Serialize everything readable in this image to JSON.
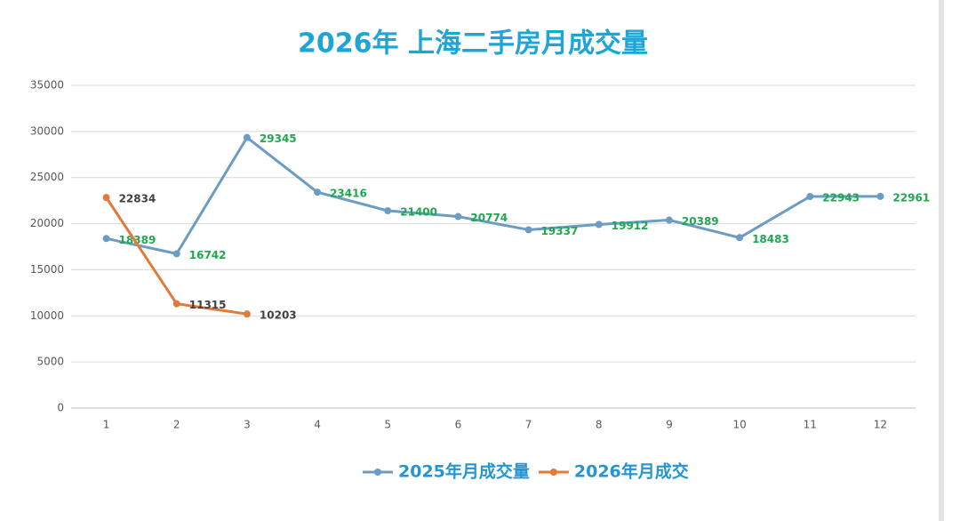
{
  "chart_data": {
    "type": "line",
    "title": "2026年 上海二手房月成交量",
    "categories": [
      "1",
      "2",
      "3",
      "4",
      "5",
      "6",
      "7",
      "8",
      "9",
      "10",
      "11",
      "12"
    ],
    "series": [
      {
        "name": "2025年月成交量",
        "color": "#6a9cc4",
        "label_color": "#1fa84f",
        "values": [
          18389,
          16742,
          29345,
          23416,
          21400,
          20774,
          19337,
          19912,
          20389,
          18483,
          22943,
          22961
        ]
      },
      {
        "name": "2026年月成交",
        "color": "#e07b39",
        "label_color": "#404040",
        "values": [
          22834,
          11315,
          10203,
          null,
          null,
          null,
          null,
          null,
          null,
          null,
          null,
          null
        ]
      }
    ],
    "ylim": [
      0,
      35000
    ],
    "yticks": [
      0,
      5000,
      10000,
      15000,
      20000,
      25000,
      30000,
      35000
    ],
    "grid": true,
    "legend": "bottom"
  }
}
